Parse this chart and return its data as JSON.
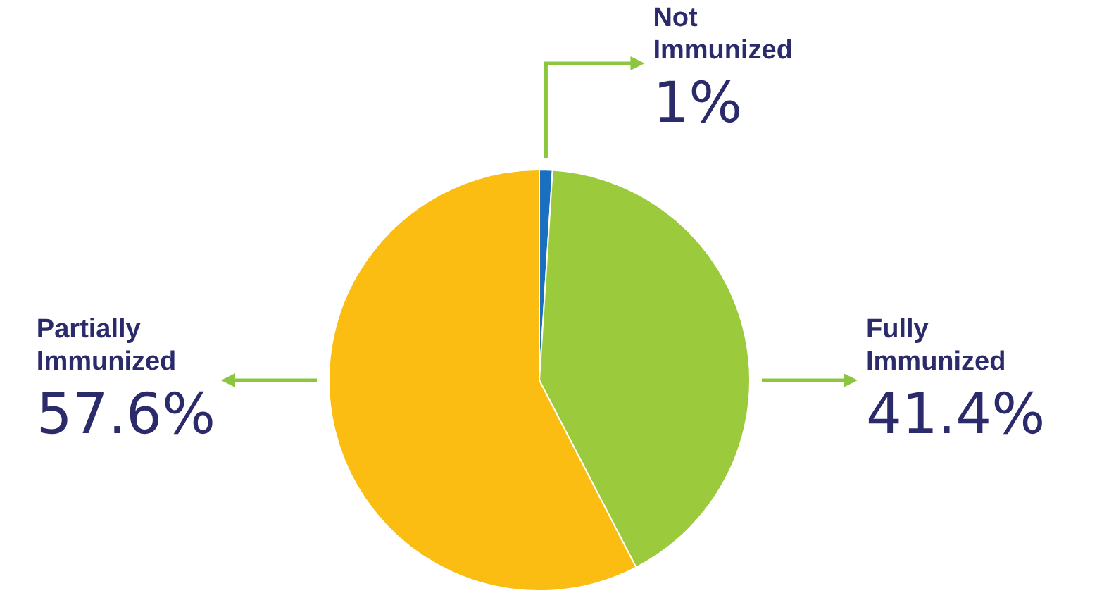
{
  "chart_data": {
    "type": "pie",
    "categories": [
      "Not Immunized",
      "Fully Immunized",
      "Partially Immunized"
    ],
    "values": [
      1,
      41.4,
      57.6
    ],
    "colors": [
      "#1a6fc0",
      "#9bca3c",
      "#fbbd12"
    ],
    "value_labels": [
      "1%",
      "41.4%",
      "57.6%"
    ],
    "legend": false
  }
}
